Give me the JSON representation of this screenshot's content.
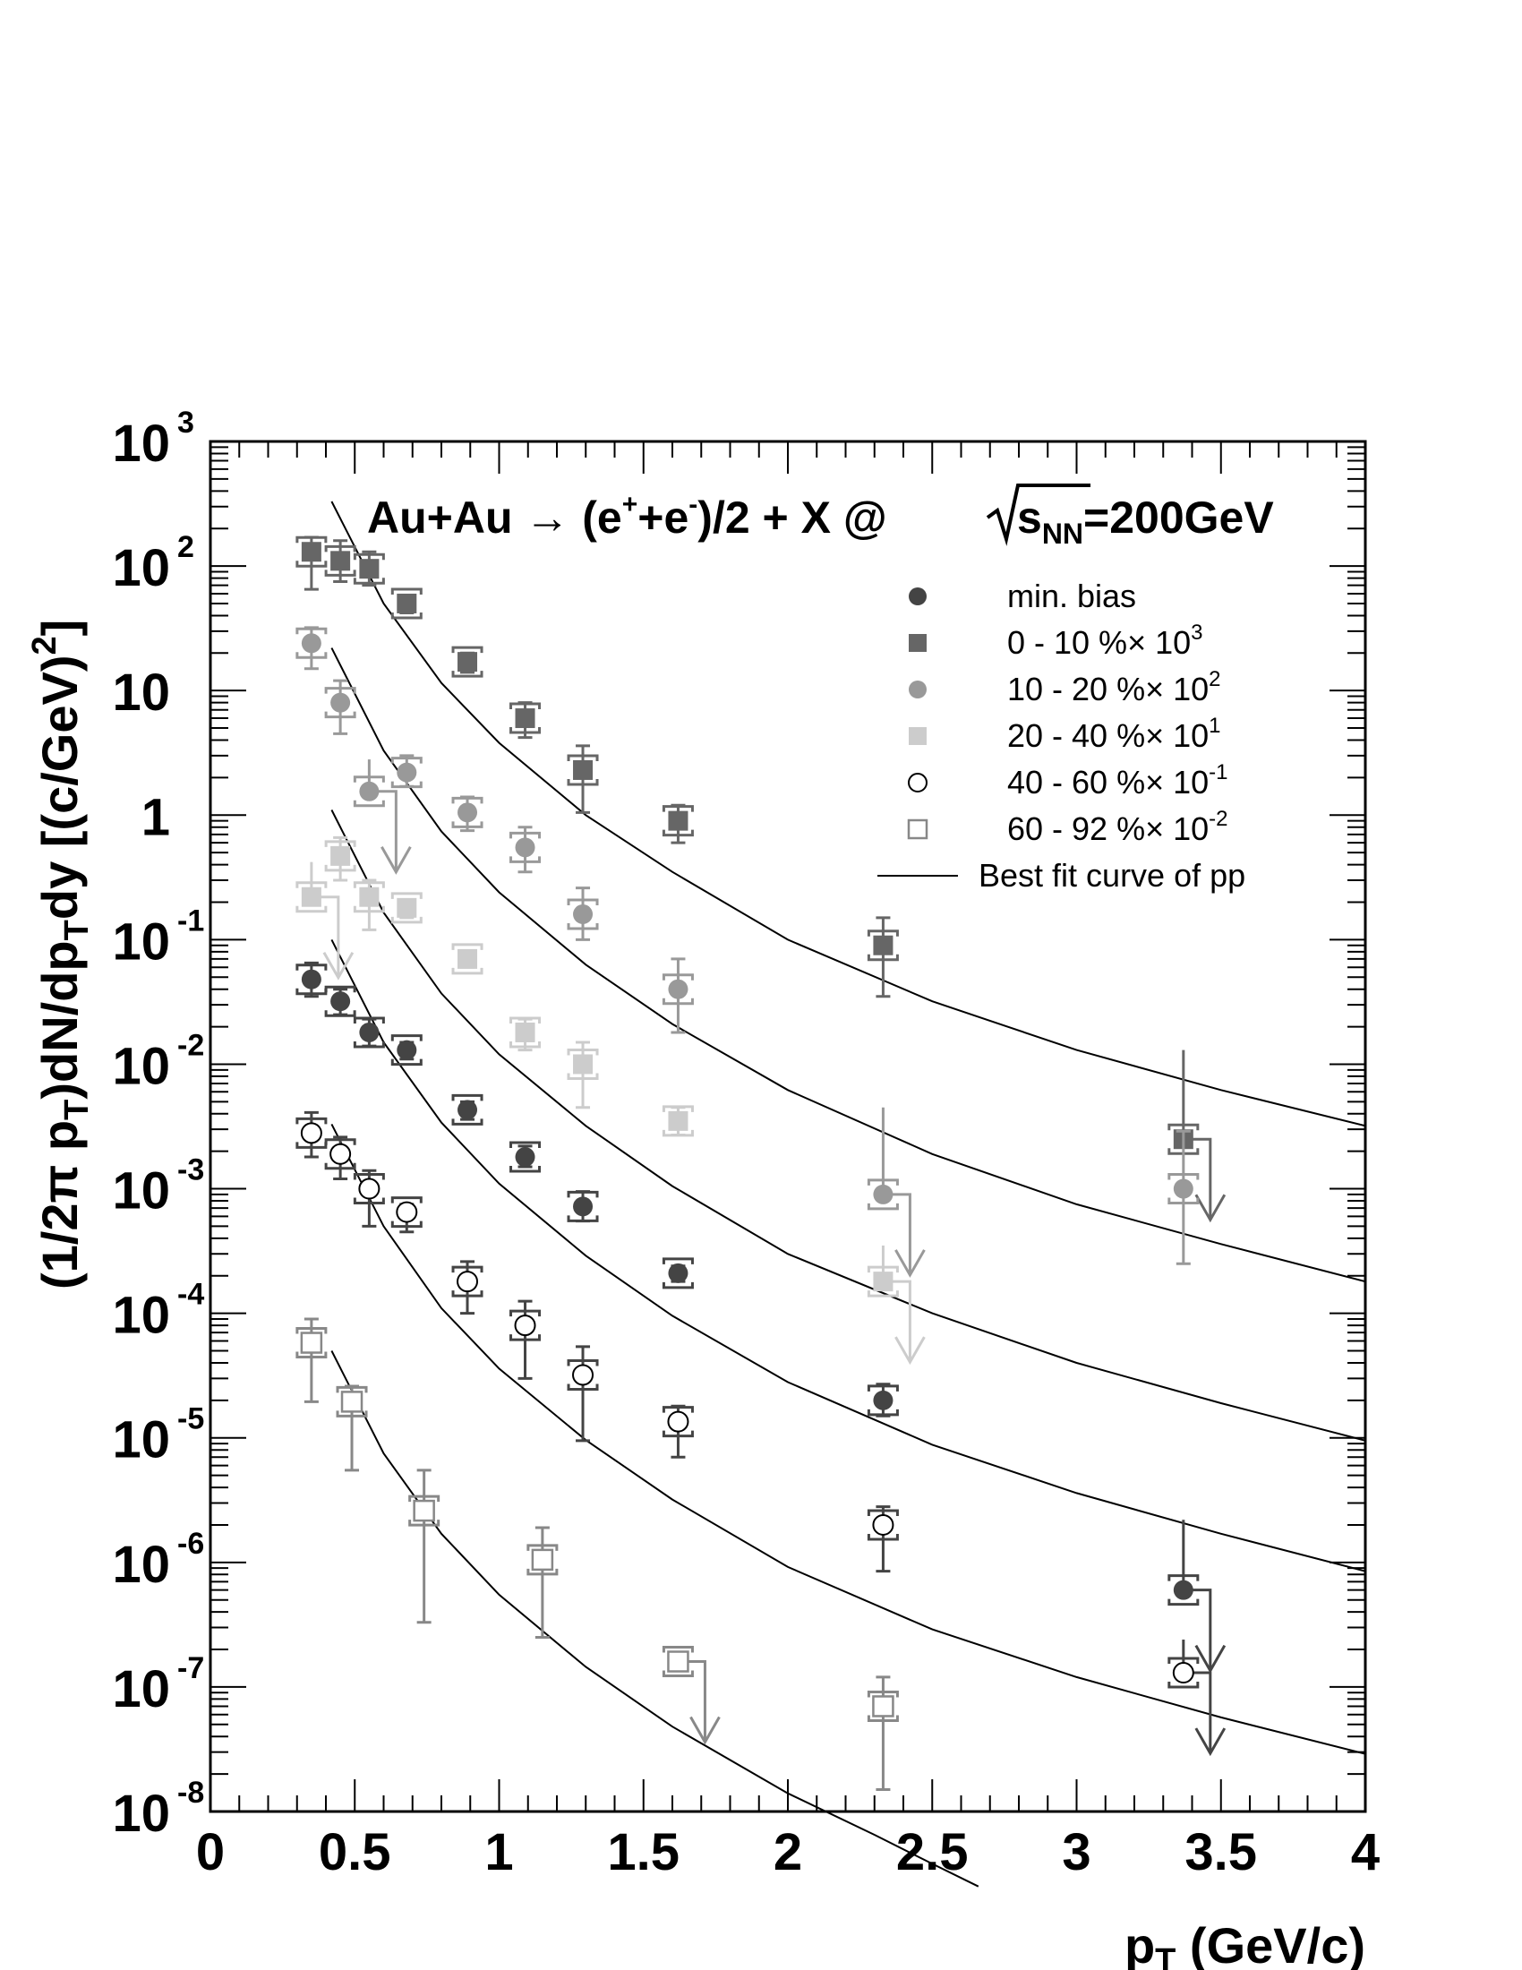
{
  "chart_data": {
    "type": "scatter",
    "title": {
      "main": "Au+Au → (e",
      "sup1": "+",
      "mid": "+e",
      "sup2": "-",
      "post": ")/2 + X @ ",
      "sqrt_s": "s",
      "sqrt_sub": "NN",
      "energy": "=200GeV"
    },
    "xlabel": {
      "main": "p",
      "sub": "T",
      "rest": " (GeV/c)"
    },
    "ylabel": "(1/2π p_T)dN/dp_T dy [(c/GeV)^2]",
    "ylabel_parts": {
      "p1": "(1/2π p",
      "s1": "T",
      "p2": ")dN/dp",
      "s2": "T",
      "p3": "dy [(c/GeV)",
      "sup": "2",
      "p4": "]"
    },
    "xlim": [
      0,
      4
    ],
    "ylim": [
      1e-08,
      1000
    ],
    "y_scale": "log",
    "x_ticks": [
      "0",
      "0.5",
      "1",
      "1.5",
      "2",
      "2.5",
      "3",
      "3.5",
      "4"
    ],
    "y_ticks": [
      {
        "base": "10",
        "exp": "-8"
      },
      {
        "base": "10",
        "exp": "-7"
      },
      {
        "base": "10",
        "exp": "-6"
      },
      {
        "base": "10",
        "exp": "-5"
      },
      {
        "base": "10",
        "exp": "-4"
      },
      {
        "base": "10",
        "exp": "-3"
      },
      {
        "base": "10",
        "exp": "-2"
      },
      {
        "base": "10",
        "exp": "-1"
      },
      {
        "base": "1",
        "exp": ""
      },
      {
        "base": "10",
        "exp": ""
      },
      {
        "base": "10",
        "exp": "2"
      },
      {
        "base": "10",
        "exp": "3"
      }
    ],
    "legend_position": "top-right",
    "legend": [
      {
        "label": "min. bias",
        "exp": ""
      },
      {
        "label": " 0 - 10 %× 10",
        "exp": "3"
      },
      {
        "label": "10 - 20 %× 10",
        "exp": "2"
      },
      {
        "label": "20 - 40 %× 10",
        "exp": "1"
      },
      {
        "label": "40 - 60 %× 10",
        "exp": "-1"
      },
      {
        "label": "60 - 92 %× 10",
        "exp": "-2"
      },
      {
        "label": "Best fit curve of pp",
        "exp": ""
      }
    ],
    "series": [
      {
        "marker": "circle",
        "filled": true,
        "color": "#444444",
        "x": [
          0.35,
          0.45,
          0.55,
          0.68,
          0.89,
          1.09,
          1.29,
          1.62,
          2.33,
          3.37
        ],
        "y": [
          0.048,
          0.032,
          0.018,
          0.013,
          0.0043,
          0.0018,
          0.00072,
          0.00021,
          2e-05,
          6e-07
        ],
        "err_low": [
          0.035,
          0.025,
          0.014,
          0.011,
          0.0036,
          0.0015,
          0.00055,
          0.00018,
          1.5e-05,
          0
        ],
        "err_high": [
          0.065,
          0.04,
          0.023,
          0.015,
          0.005,
          0.0022,
          0.00095,
          0.00024,
          2.7e-05,
          2.2e-06
        ],
        "upper_limit": [
          false,
          false,
          false,
          false,
          false,
          false,
          false,
          false,
          false,
          true
        ]
      },
      {
        "marker": "square",
        "filled": true,
        "color": "#666666",
        "x": [
          0.35,
          0.45,
          0.55,
          0.68,
          0.89,
          1.09,
          1.29,
          1.62,
          2.33,
          3.37
        ],
        "y": [
          130,
          110,
          95,
          50,
          17,
          6,
          2.3,
          0.9,
          0.09,
          0.0025
        ],
        "err_low": [
          65,
          75,
          70,
          42,
          14,
          4.2,
          1.05,
          0.6,
          0.035,
          0
        ],
        "err_high": [
          170,
          160,
          130,
          58,
          20,
          8,
          3.6,
          1.2,
          0.15,
          0.013
        ],
        "upper_limit": [
          false,
          false,
          false,
          false,
          false,
          false,
          false,
          false,
          false,
          true
        ]
      },
      {
        "marker": "circle",
        "filled": true,
        "color": "#999999",
        "x": [
          0.35,
          0.45,
          0.55,
          0.68,
          0.89,
          1.09,
          1.29,
          1.62,
          2.33,
          3.37
        ],
        "y": [
          24,
          8,
          1.55,
          2.2,
          1.05,
          0.55,
          0.16,
          0.04,
          0.0009,
          0.001
        ],
        "err_low": [
          15,
          4.5,
          0,
          1.7,
          0.75,
          0.35,
          0.1,
          0.018,
          0,
          0.00025
        ],
        "err_high": [
          32,
          12,
          2.8,
          3,
          1.4,
          0.8,
          0.26,
          0.07,
          0.0045,
          0.0029
        ],
        "upper_limit": [
          false,
          false,
          true,
          false,
          false,
          false,
          false,
          false,
          true,
          false
        ]
      },
      {
        "marker": "square",
        "filled": true,
        "color": "#cccccc",
        "x": [
          0.35,
          0.45,
          0.55,
          0.68,
          0.89,
          1.09,
          1.29,
          1.62,
          2.33
        ],
        "y": [
          0.22,
          0.47,
          0.22,
          0.18,
          0.07,
          0.018,
          0.01,
          0.0035,
          0.00018
        ],
        "err_low": [
          0,
          0.3,
          0.12,
          0.15,
          0.06,
          0.013,
          0.0045,
          0.0027,
          0
        ],
        "err_high": [
          0.42,
          0.66,
          0.3,
          0.21,
          0.08,
          0.023,
          0.015,
          0.0045,
          0.00035
        ],
        "upper_limit": [
          true,
          false,
          false,
          false,
          false,
          false,
          false,
          false,
          true
        ]
      },
      {
        "marker": "circle",
        "filled": false,
        "color": "#444444",
        "x": [
          0.35,
          0.45,
          0.55,
          0.68,
          0.89,
          1.09,
          1.29,
          1.62,
          2.33,
          3.37
        ],
        "y": [
          0.0028,
          0.0019,
          0.001,
          0.00065,
          0.00018,
          8e-05,
          3.2e-05,
          1.35e-05,
          2e-06,
          1.3e-07
        ],
        "err_low": [
          0.0018,
          0.0012,
          0.0005,
          0.00045,
          0.0001,
          3e-05,
          9.5e-06,
          7e-06,
          8.5e-07,
          0
        ],
        "err_high": [
          0.0041,
          0.0026,
          0.0014,
          0.00075,
          0.00026,
          0.000125,
          5.4e-05,
          1.8e-05,
          2.8e-06,
          2.4e-07
        ],
        "upper_limit": [
          false,
          false,
          false,
          false,
          false,
          false,
          false,
          false,
          false,
          true
        ]
      },
      {
        "marker": "square",
        "filled": false,
        "color": "#888888",
        "x": [
          0.35,
          0.49,
          0.74,
          1.15,
          1.62,
          2.33
        ],
        "y": [
          5.8e-05,
          1.95e-05,
          2.6e-06,
          1.05e-06,
          1.6e-07,
          7e-08
        ],
        "err_low": [
          1.95e-05,
          5.5e-06,
          3.3e-07,
          2.5e-07,
          0,
          1.5e-08
        ],
        "err_high": [
          9e-05,
          2.6e-05,
          5.5e-06,
          1.9e-06,
          1.6e-07,
          1.2e-07
        ],
        "upper_limit": [
          false,
          false,
          false,
          false,
          true,
          false
        ]
      }
    ],
    "fit_curves": [
      {
        "name": "0 - 10 %",
        "x": [
          0.42,
          0.6,
          0.8,
          1.0,
          1.3,
          1.6,
          2.0,
          2.5,
          3.0,
          3.5,
          4.0
        ],
        "y": [
          330,
          50,
          11.5,
          3.8,
          1.0,
          0.35,
          0.1,
          0.032,
          0.013,
          0.0062,
          0.0032
        ]
      },
      {
        "name": "10 - 20 %",
        "x": [
          0.42,
          0.6,
          0.8,
          1.0,
          1.3,
          1.6,
          2.0,
          2.5,
          3.0,
          3.5,
          4.0
        ],
        "y": [
          22,
          3.3,
          0.74,
          0.24,
          0.063,
          0.021,
          0.0062,
          0.0019,
          0.00075,
          0.00036,
          0.00018
        ]
      },
      {
        "name": "20 - 40 %",
        "x": [
          0.42,
          0.6,
          0.8,
          1.0,
          1.3,
          1.6,
          2.0,
          2.5,
          3.0,
          3.5,
          4.0
        ],
        "y": [
          1.1,
          0.165,
          0.037,
          0.012,
          0.0032,
          0.00105,
          0.0003,
          0.0001,
          4e-05,
          1.9e-05,
          9.5e-06
        ]
      },
      {
        "name": "min. bias",
        "x": [
          0.42,
          0.6,
          0.8,
          1.0,
          1.3,
          1.6,
          2.0,
          2.5,
          3.0,
          3.5,
          4.0
        ],
        "y": [
          0.1,
          0.015,
          0.0034,
          0.0011,
          0.00029,
          9.55e-05,
          2.8e-05,
          8.8e-06,
          3.6e-06,
          1.7e-06,
          8.5e-07
        ]
      },
      {
        "name": "40 - 60 %",
        "x": [
          0.42,
          0.6,
          0.8,
          1.0,
          1.3,
          1.6,
          2.0,
          2.5,
          3.0,
          3.5,
          4.0
        ],
        "y": [
          0.0033,
          0.0005,
          0.00011,
          3.6e-05,
          9.6e-06,
          3.2e-06,
          9.2e-07,
          2.9e-07,
          1.2e-07,
          5.7e-08,
          2.9e-08
        ]
      },
      {
        "name": "60 - 92 %",
        "x": [
          0.42,
          0.6,
          0.8,
          1.0,
          1.3,
          1.6,
          2.0,
          2.3,
          2.5,
          2.66
        ],
        "y": [
          5e-05,
          7.5e-06,
          1.7e-06,
          5.5e-07,
          1.45e-07,
          4.8e-08,
          1.4e-08,
          6.5e-09,
          3.8e-09,
          2.5e-09
        ]
      }
    ]
  }
}
